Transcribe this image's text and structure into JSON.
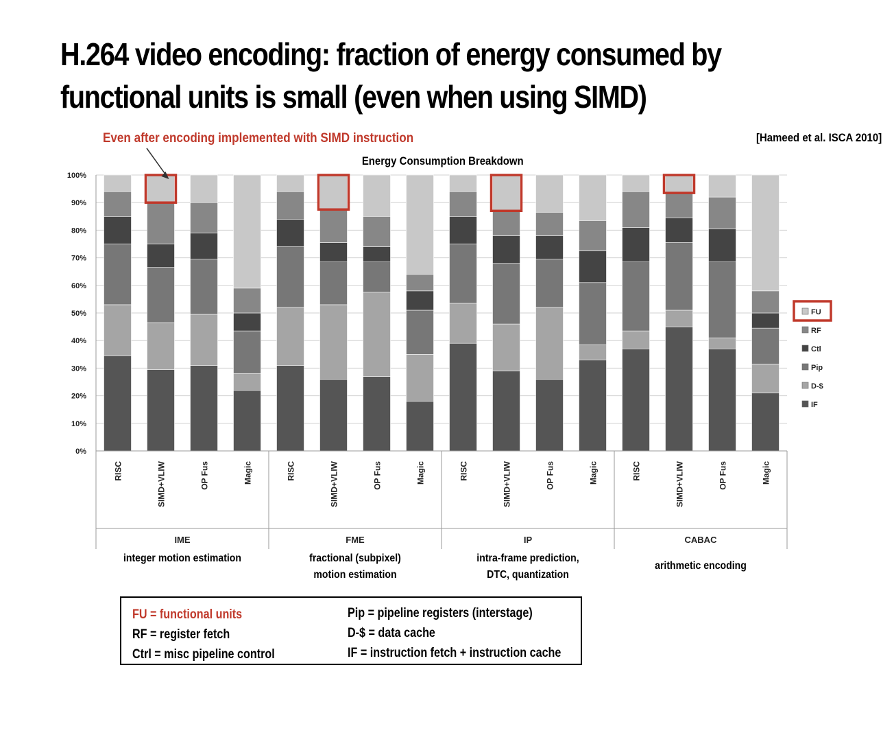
{
  "slide": {
    "title_lines": [
      "H.264 video encoding: fraction of energy consumed by",
      "functional units is small (even when using SIMD)"
    ],
    "callout": "Even after encoding implemented with SIMD instruction",
    "citation": "[Hameed et al. ISCA 2010]",
    "accent_color": "#c0392b"
  },
  "chart_data": {
    "type": "bar",
    "stacked": true,
    "title": "Energy Consumption Breakdown",
    "ylim": [
      0,
      100
    ],
    "yticks": [
      "0%",
      "10%",
      "20%",
      "30%",
      "40%",
      "50%",
      "60%",
      "70%",
      "80%",
      "90%",
      "100%"
    ],
    "legend_position": "right",
    "grid": true,
    "groups": [
      {
        "label": "IME",
        "description": "integer motion estimation"
      },
      {
        "label": "FME",
        "description": "fractional (subpixel)\nmotion estimation"
      },
      {
        "label": "IP",
        "description": "intra-frame prediction,\nDTC, quantization"
      },
      {
        "label": "CABAC",
        "description": "arithmetic encoding"
      }
    ],
    "categories": [
      "RISC",
      "SIMD+VLIW",
      "OP Fus",
      "Magic",
      "RISC",
      "SIMD+VLIW",
      "OP Fus",
      "Magic",
      "RISC",
      "SIMD+VLIW",
      "OP Fus",
      "Magic",
      "RISC",
      "SIMD+VLIW",
      "OP Fus",
      "Magic"
    ],
    "series": [
      {
        "name": "IF",
        "color": "#555555",
        "values": [
          34.5,
          29.5,
          31,
          22,
          31,
          26,
          27,
          18,
          39,
          29,
          26,
          33,
          37,
          45,
          37,
          21
        ]
      },
      {
        "name": "D-$",
        "color": "#a5a5a5",
        "values": [
          18.5,
          17,
          18.5,
          6,
          21,
          27,
          30.5,
          17,
          14.5,
          17,
          26,
          5.5,
          6.5,
          6,
          4,
          10.5
        ]
      },
      {
        "name": "Pip",
        "color": "#777777",
        "values": [
          22,
          20,
          20,
          15.5,
          22,
          15.5,
          11,
          16,
          21.5,
          22,
          17.5,
          22.5,
          25,
          24.5,
          27.5,
          13
        ]
      },
      {
        "name": "Ctl",
        "color": "#444444",
        "values": [
          10,
          8.5,
          9.5,
          6.5,
          10,
          7,
          5.5,
          7,
          10,
          10,
          8.5,
          11.5,
          12.5,
          9,
          12,
          5.5
        ]
      },
      {
        "name": "RF",
        "color": "#878787",
        "values": [
          9,
          15,
          11,
          9,
          10,
          12,
          11,
          6,
          9,
          9,
          8.5,
          11,
          13,
          9,
          11.5,
          8
        ]
      },
      {
        "name": "FU",
        "color": "#c8c8c8",
        "values": [
          6,
          10,
          10,
          41,
          6,
          12.5,
          15,
          36,
          6,
          13,
          13.5,
          16.5,
          6,
          6.5,
          8,
          42
        ]
      }
    ],
    "legend_order": [
      "FU",
      "RF",
      "Ctl",
      "Pip",
      "D-$",
      "IF"
    ],
    "highlighted_bars": [
      1,
      5,
      9,
      13
    ],
    "highlighted_series": "FU"
  },
  "glossary": {
    "left": [
      {
        "text": "FU = functional units",
        "accent": true
      },
      {
        "text": "RF = register fetch",
        "accent": false
      },
      {
        "text": "Ctrl = misc pipeline control",
        "accent": false
      }
    ],
    "right": [
      {
        "text": "Pip = pipeline registers (interstage)",
        "accent": false
      },
      {
        "text": "D-$ = data cache",
        "accent": false
      },
      {
        "text": "IF = instruction fetch + instruction cache",
        "accent": false
      }
    ]
  }
}
